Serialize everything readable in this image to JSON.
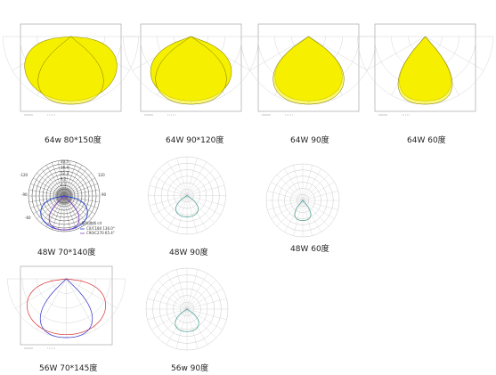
{
  "panels": [
    {
      "id": "p1",
      "label": "64w  80*150度",
      "style": "rect",
      "fill": "#f5f000",
      "beam": [
        150,
        80
      ]
    },
    {
      "id": "p2",
      "label": "64W  90*120度",
      "style": "rect",
      "fill": "#f5f000",
      "beam": [
        120,
        90
      ]
    },
    {
      "id": "p3",
      "label": "64W  90度",
      "style": "rect",
      "fill": "#f5f000",
      "beam": [
        90,
        90
      ]
    },
    {
      "id": "p4",
      "label": "64W  60度",
      "style": "rect",
      "fill": "#f5f000",
      "beam": [
        60,
        60
      ]
    },
    {
      "id": "p5",
      "label": "48W  70*140度",
      "style": "darkpolar",
      "beam": [
        140,
        70
      ]
    },
    {
      "id": "p6",
      "label": "48W  90度",
      "style": "polar",
      "beam": [
        90,
        90
      ]
    },
    {
      "id": "p7",
      "label": "48W  60度",
      "style": "polar",
      "beam": [
        60,
        60
      ]
    },
    {
      "id": "p8",
      "label": "56W  70*145度",
      "style": "rectline",
      "beam": [
        145,
        70
      ]
    },
    {
      "id": "p9",
      "label": "56w  90度",
      "style": "polar",
      "beam": [
        90,
        90
      ]
    }
  ],
  "p5_readout": {
    "scale": [
      "20.5",
      "16.4",
      "12.3",
      "8.2",
      "4.1"
    ],
    "angles": [
      "-120",
      "-90",
      "-60",
      "90",
      "120"
    ],
    "legend_title": "配光曲线 cd",
    "legend": [
      "C0/C180 136.0°",
      "C90/C270 65.4°"
    ]
  }
}
